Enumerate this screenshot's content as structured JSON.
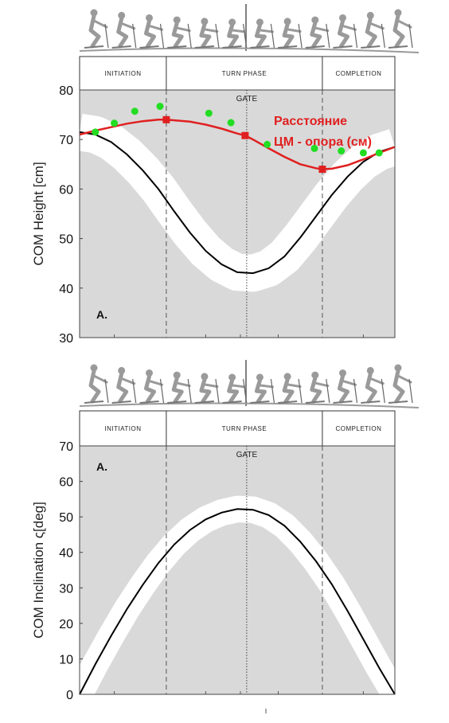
{
  "colors": {
    "band": "#d9d9d9",
    "corridor": "#ffffff",
    "curve": "#000000",
    "red": "#e02020",
    "green": "#22dd22",
    "skier": "#9a9a9a"
  },
  "phases": [
    "INITIATION",
    "TURN PHASE",
    "COMPLETION"
  ],
  "gate_label": "GATE",
  "chart_data": [
    {
      "type": "line",
      "panel_label": "A.",
      "ylabel": "COM Height [cm]",
      "ylim": [
        30,
        80
      ],
      "yticks": [
        30,
        40,
        50,
        60,
        70,
        80
      ],
      "xlim": [
        0,
        100
      ],
      "phase_boundaries": [
        27.5,
        77
      ],
      "gate_x": 53,
      "series": [
        {
          "x": [
            0,
            5,
            10,
            15,
            20,
            25,
            30,
            35,
            40,
            45,
            50,
            55,
            60,
            65,
            70,
            75,
            80,
            85,
            90,
            95,
            100
          ],
          "values": [
            71.5,
            71.0,
            69.5,
            67.0,
            63.8,
            60.0,
            55.5,
            51.2,
            47.5,
            44.8,
            43.2,
            43.0,
            44.0,
            46.4,
            50.2,
            54.5,
            58.8,
            62.5,
            65.5,
            67.5,
            68.5
          ]
        },
        {
          "name": "Расстояние ЦМ - опора (см)",
          "x": [
            0,
            5,
            10,
            15,
            20,
            25,
            27.5,
            35,
            40,
            45,
            50,
            52.5,
            55,
            60,
            65,
            70,
            75,
            77,
            80,
            85,
            90,
            95,
            100
          ],
          "values": [
            71.0,
            71.8,
            72.5,
            73.2,
            73.7,
            74.0,
            74.0,
            73.6,
            73.0,
            72.2,
            71.2,
            70.8,
            70.0,
            68.2,
            66.5,
            65.0,
            64.2,
            64.0,
            64.1,
            64.8,
            66.0,
            67.3,
            68.5
          ],
          "markers": [
            {
              "x": 27.5,
              "y": 74.0
            },
            {
              "x": 52.5,
              "y": 70.8
            },
            {
              "x": 77,
              "y": 64.0
            }
          ]
        },
        {
          "type": "scatter",
          "x": [
            5,
            11,
            17.5,
            25.5,
            41,
            48,
            59.5,
            74.5,
            83,
            90,
            95
          ],
          "values": [
            71.5,
            73.3,
            75.7,
            76.7,
            75.3,
            73.4,
            69.0,
            68.2,
            67.7,
            67.3,
            67.3
          ]
        }
      ]
    },
    {
      "type": "line",
      "panel_label": "A.",
      "ylabel": "COM Inclination ς[deg]",
      "ylim": [
        0,
        70
      ],
      "yticks": [
        0,
        10,
        20,
        30,
        40,
        50,
        60,
        70
      ],
      "xlim": [
        0,
        100
      ],
      "phase_boundaries": [
        27.5,
        77
      ],
      "gate_x": 53,
      "series": [
        {
          "x": [
            0,
            5,
            10,
            15,
            20,
            25,
            30,
            35,
            40,
            45,
            50,
            55,
            60,
            65,
            70,
            75,
            80,
            85,
            90,
            95,
            100
          ],
          "values": [
            0,
            8.5,
            16.5,
            24.0,
            30.8,
            37.0,
            42.2,
            46.3,
            49.3,
            51.2,
            52.2,
            52.0,
            50.5,
            47.5,
            43.0,
            37.5,
            31.0,
            23.5,
            15.5,
            7.5,
            0
          ]
        }
      ]
    }
  ]
}
